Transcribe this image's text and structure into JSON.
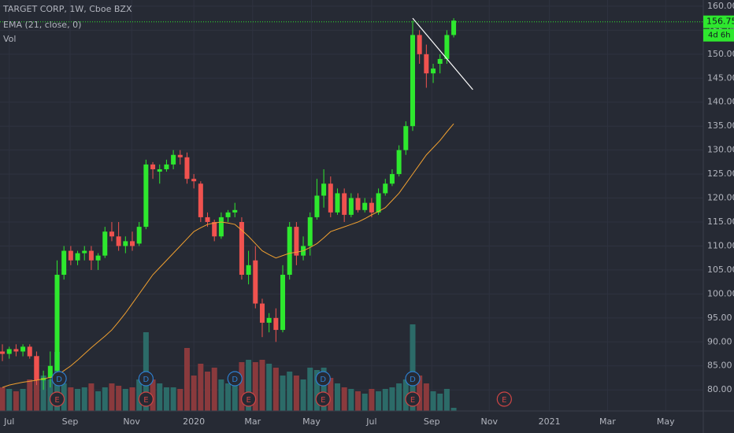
{
  "chart_data": {
    "type": "candlestick",
    "title": "TARGET CORP, 1W, Cboe BZX",
    "indicators": [
      "EMA (21, close, 0)",
      "Vol"
    ],
    "x": [
      0,
      1,
      2,
      3,
      4,
      5,
      6,
      7,
      8,
      9,
      10,
      11,
      12,
      13,
      14,
      15,
      16,
      17,
      18,
      19,
      20,
      21,
      22,
      23,
      24,
      25,
      26,
      27,
      28,
      29,
      30,
      31,
      32,
      33,
      34,
      35,
      36,
      37,
      38,
      39,
      40,
      41,
      42,
      43,
      44,
      45,
      46,
      47,
      48,
      49,
      50,
      51,
      52,
      53,
      54,
      55,
      56,
      57,
      58,
      59,
      60,
      61,
      62,
      63,
      64,
      65,
      66
    ],
    "open": [
      88,
      87.5,
      88.5,
      88,
      89,
      87,
      82,
      82.5,
      84,
      104,
      109,
      107,
      108.5,
      109,
      107,
      108,
      113,
      112,
      110,
      111,
      110.5,
      114,
      127,
      125.5,
      126,
      127,
      129,
      128.5,
      124,
      123,
      116,
      115,
      112,
      116,
      117,
      115,
      104,
      107,
      98,
      94,
      95,
      92.5,
      104,
      114,
      108,
      110,
      116,
      120.5,
      123,
      117,
      121,
      116.5,
      120,
      117.5,
      119,
      117,
      121,
      123,
      125,
      130,
      135,
      154,
      150,
      146,
      148,
      149,
      154
    ],
    "high": [
      89.5,
      89,
      89.5,
      89.5,
      89.5,
      88,
      84,
      88,
      107,
      110,
      110,
      109,
      110,
      110,
      108.5,
      114,
      115,
      115,
      112,
      113,
      115,
      128,
      127.5,
      127,
      128,
      130,
      130,
      129.5,
      125,
      123.5,
      117,
      115.5,
      117,
      117.5,
      119,
      116,
      109,
      110,
      99,
      96,
      97,
      106,
      115,
      115,
      112,
      117,
      124,
      126,
      124.5,
      122,
      122,
      121,
      121,
      120,
      120,
      122,
      124,
      126,
      131,
      136,
      157,
      155,
      152,
      148,
      150,
      155,
      157.5
    ],
    "low": [
      86,
      86.5,
      87,
      87,
      86.5,
      81,
      80,
      80.5,
      83.5,
      103,
      106,
      106,
      107,
      105,
      105,
      107.5,
      111,
      109,
      108.5,
      109,
      110,
      113.5,
      124,
      123,
      125.5,
      126,
      127,
      123,
      122,
      115,
      114,
      111,
      111.5,
      115,
      116,
      103,
      102,
      97,
      91,
      92,
      90,
      92,
      103,
      106,
      107,
      108,
      115.5,
      118,
      116,
      116.5,
      115,
      116,
      117,
      117,
      116,
      116.5,
      120.5,
      122.5,
      124.5,
      129,
      134,
      148,
      143,
      144,
      146,
      148,
      153.5
    ],
    "close": [
      87.5,
      88.5,
      88,
      89,
      87,
      82,
      82.5,
      85,
      104,
      109,
      107,
      108.5,
      109,
      107,
      108,
      113,
      112,
      110,
      111,
      110,
      114,
      127,
      126,
      126,
      127,
      129,
      128.5,
      124,
      123.5,
      116,
      115,
      112,
      116,
      117,
      117.5,
      104,
      106,
      98,
      94,
      95,
      92.5,
      104,
      114,
      108,
      110,
      116,
      120.5,
      123,
      117,
      121,
      116.5,
      120,
      117.5,
      119,
      117,
      121,
      123,
      125,
      130,
      135,
      154,
      150,
      146,
      147,
      149,
      154,
      157
    ],
    "up_color": "#2ee82e",
    "down_color": "#f0524f",
    "ema": {
      "color": "#f0a030",
      "values": [
        80.5,
        81,
        81.3,
        81.6,
        81.8,
        82,
        82.3,
        82.6,
        83,
        84,
        85,
        86.2,
        87.5,
        88.8,
        90,
        91.2,
        92.5,
        94.2,
        96,
        98,
        100,
        102,
        104,
        105.5,
        107,
        108.5,
        110,
        111.5,
        113,
        113.8,
        114.5,
        114.8,
        115,
        114.8,
        114.5,
        113.3,
        112,
        110.5,
        109,
        108.2,
        107.5,
        108,
        108.5,
        108.7,
        109,
        109.7,
        110.5,
        111.7,
        113,
        113.5,
        114,
        114.5,
        115,
        115.7,
        116.5,
        117.2,
        118,
        119.5,
        121,
        123,
        125,
        127,
        129,
        130.5,
        132,
        133.8,
        135.5
      ]
    },
    "volume": {
      "ylim": [
        0,
        150
      ],
      "up_color": "#2c6b68",
      "down_color": "#8a3a3d",
      "values": [
        30,
        28,
        25,
        28,
        40,
        70,
        45,
        40,
        75,
        35,
        30,
        28,
        30,
        35,
        25,
        30,
        35,
        32,
        28,
        30,
        40,
        100,
        40,
        35,
        30,
        30,
        28,
        80,
        45,
        60,
        50,
        55,
        40,
        35,
        42,
        62,
        65,
        62,
        65,
        60,
        55,
        45,
        50,
        45,
        40,
        55,
        52,
        55,
        42,
        35,
        30,
        28,
        25,
        22,
        28,
        25,
        28,
        30,
        35,
        40,
        110,
        45,
        35,
        25,
        22,
        28,
        4
      ]
    },
    "xlim": [
      -0.35,
      102.5
    ],
    "xticks": [
      {
        "value": 1,
        "label": "Jul"
      },
      {
        "value": 9.9,
        "label": "Sep"
      },
      {
        "value": 18.9,
        "label": "Nov"
      },
      {
        "value": 28,
        "label": "2020"
      },
      {
        "value": 36.6,
        "label": "Mar"
      },
      {
        "value": 45.2,
        "label": "May"
      },
      {
        "value": 54,
        "label": "Jul"
      },
      {
        "value": 62.8,
        "label": "Sep"
      },
      {
        "value": 71.2,
        "label": "Nov"
      },
      {
        "value": 80,
        "label": "2021"
      },
      {
        "value": 88.5,
        "label": "Mar"
      },
      {
        "value": 97,
        "label": "May"
      }
    ],
    "ylim": [
      75.6,
      161.3
    ],
    "yticks": [
      {
        "value": 80,
        "label": "80.00"
      },
      {
        "value": 85,
        "label": "85.00"
      },
      {
        "value": 90,
        "label": "90.00"
      },
      {
        "value": 95,
        "label": "95.00"
      },
      {
        "value": 100,
        "label": "100.00"
      },
      {
        "value": 105,
        "label": "105.00"
      },
      {
        "value": 110,
        "label": "110.00"
      },
      {
        "value": 115,
        "label": "115.00"
      },
      {
        "value": 120,
        "label": "120.00"
      },
      {
        "value": 125,
        "label": "125.00"
      },
      {
        "value": 130,
        "label": "130.00"
      },
      {
        "value": 135,
        "label": "135.00"
      },
      {
        "value": 140,
        "label": "140.00"
      },
      {
        "value": 145,
        "label": "145.00"
      },
      {
        "value": 150,
        "label": "150.00"
      },
      {
        "value": 155,
        "label": "155.00"
      },
      {
        "value": 160,
        "label": "160.00"
      }
    ],
    "grid": true,
    "last_price": 156.75,
    "countdown": "4d 6h",
    "trendline": {
      "color": "#ffffff",
      "x": [
        60,
        68.8
      ],
      "y": [
        157.5,
        142.6
      ]
    },
    "events": [
      {
        "label": "D",
        "x": 8.3,
        "color": "#2e7fd0"
      },
      {
        "label": "E",
        "x": 8,
        "color": "#d04545"
      },
      {
        "label": "D",
        "x": 21,
        "color": "#2e7fd0"
      },
      {
        "label": "E",
        "x": 21,
        "color": "#d04545"
      },
      {
        "label": "D",
        "x": 34,
        "color": "#2e7fd0"
      },
      {
        "label": "E",
        "x": 36,
        "color": "#d04545"
      },
      {
        "label": "D",
        "x": 46.9,
        "color": "#2e7fd0"
      },
      {
        "label": "E",
        "x": 46.9,
        "color": "#d04545"
      },
      {
        "label": "D",
        "x": 60,
        "color": "#2e7fd0"
      },
      {
        "label": "E",
        "x": 60,
        "color": "#d04545"
      },
      {
        "label": "E",
        "x": 73.4,
        "color": "#d04545"
      }
    ]
  }
}
